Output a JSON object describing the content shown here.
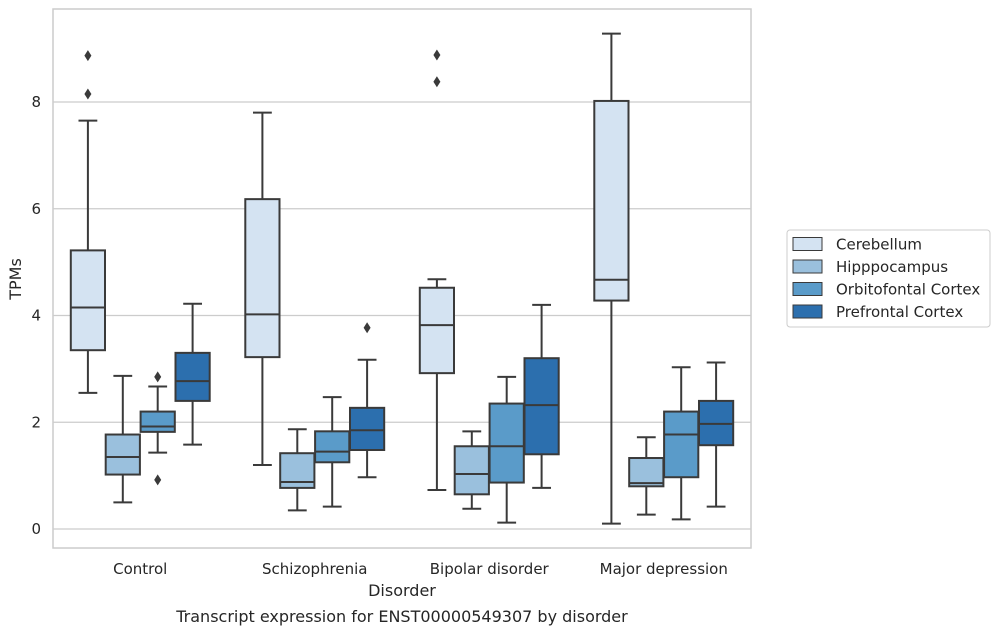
{
  "chart_data": {
    "type": "box",
    "title": "Transcript expression for ENST00000549307 by disorder",
    "xlabel": "Disorder",
    "ylabel": "TPMs",
    "ylim": [
      -0.3,
      9.8
    ],
    "yticks": [
      0,
      2,
      4,
      6,
      8
    ],
    "grid": "horizontal",
    "legend_position": "right",
    "categories": [
      "Control",
      "Schizophrenia",
      "Bipolar disorder",
      "Major depression"
    ],
    "series": [
      {
        "name": "Cerebellum",
        "color": "#d4e3f2",
        "boxes": [
          {
            "whisker_low": 2.55,
            "q1": 3.35,
            "median": 4.15,
            "q3": 5.22,
            "whisker_high": 7.65,
            "outliers": [
              8.15,
              8.87
            ]
          },
          {
            "whisker_low": 1.2,
            "q1": 3.22,
            "median": 4.02,
            "q3": 6.18,
            "whisker_high": 7.8,
            "outliers": []
          },
          {
            "whisker_low": 0.73,
            "q1": 2.92,
            "median": 3.82,
            "q3": 4.52,
            "whisker_high": 4.68,
            "outliers": [
              8.38,
              8.88
            ]
          },
          {
            "whisker_low": 0.1,
            "q1": 4.28,
            "median": 4.67,
            "q3": 8.02,
            "whisker_high": 9.28,
            "outliers": []
          }
        ]
      },
      {
        "name": "Hipppocampus",
        "color": "#9ac0dd",
        "boxes": [
          {
            "whisker_low": 0.5,
            "q1": 1.02,
            "median": 1.35,
            "q3": 1.77,
            "whisker_high": 2.87,
            "outliers": []
          },
          {
            "whisker_low": 0.35,
            "q1": 0.77,
            "median": 0.88,
            "q3": 1.42,
            "whisker_high": 1.87,
            "outliers": []
          },
          {
            "whisker_low": 0.38,
            "q1": 0.65,
            "median": 1.03,
            "q3": 1.55,
            "whisker_high": 1.83,
            "outliers": []
          },
          {
            "whisker_low": 0.27,
            "q1": 0.8,
            "median": 0.86,
            "q3": 1.33,
            "whisker_high": 1.72,
            "outliers": []
          }
        ]
      },
      {
        "name": "Orbitofontal Cortex",
        "color": "#5a9bc9",
        "boxes": [
          {
            "whisker_low": 1.43,
            "q1": 1.82,
            "median": 1.92,
            "q3": 2.2,
            "whisker_high": 2.67,
            "outliers": [
              0.92,
              2.85
            ]
          },
          {
            "whisker_low": 0.42,
            "q1": 1.25,
            "median": 1.45,
            "q3": 1.83,
            "whisker_high": 2.47,
            "outliers": []
          },
          {
            "whisker_low": 0.12,
            "q1": 0.87,
            "median": 1.55,
            "q3": 2.35,
            "whisker_high": 2.85,
            "outliers": []
          },
          {
            "whisker_low": 0.18,
            "q1": 0.97,
            "median": 1.77,
            "q3": 2.2,
            "whisker_high": 3.03,
            "outliers": []
          }
        ]
      },
      {
        "name": "Prefrontal Cortex",
        "color": "#2c6fae",
        "boxes": [
          {
            "whisker_low": 1.58,
            "q1": 2.4,
            "median": 2.77,
            "q3": 3.3,
            "whisker_high": 4.22,
            "outliers": []
          },
          {
            "whisker_low": 0.97,
            "q1": 1.48,
            "median": 1.85,
            "q3": 2.27,
            "whisker_high": 3.17,
            "outliers": [
              3.77
            ]
          },
          {
            "whisker_low": 0.77,
            "q1": 1.4,
            "median": 2.32,
            "q3": 3.2,
            "whisker_high": 4.2,
            "outliers": []
          },
          {
            "whisker_low": 0.42,
            "q1": 1.57,
            "median": 1.97,
            "q3": 2.4,
            "whisker_high": 3.12,
            "outliers": []
          }
        ]
      }
    ]
  }
}
